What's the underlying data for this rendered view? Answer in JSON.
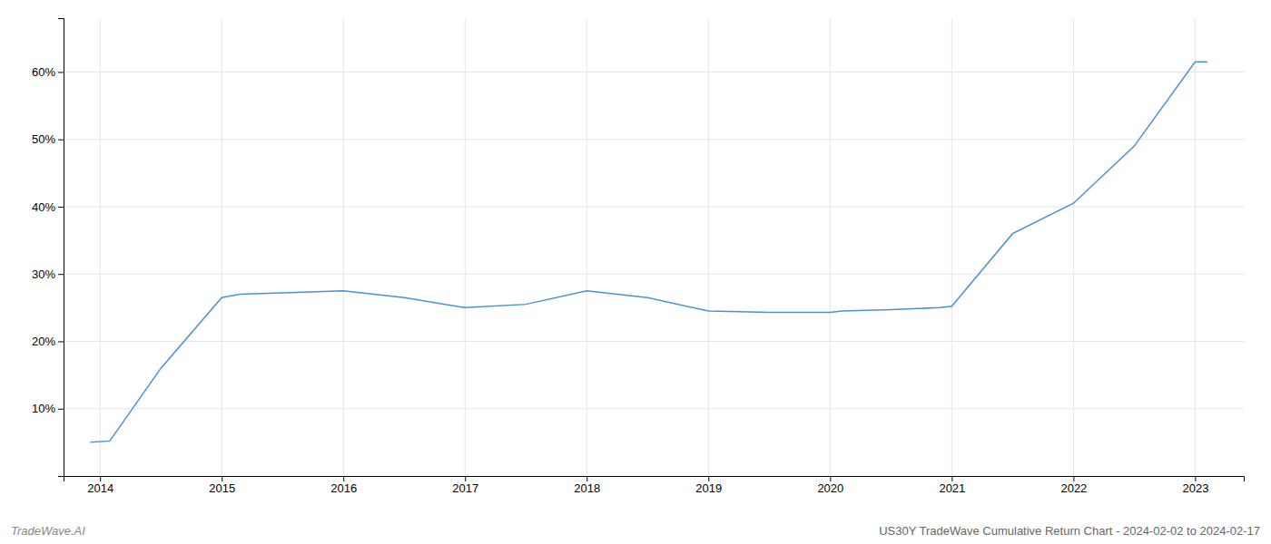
{
  "chart_data": {
    "type": "line",
    "title": "US30Y TradeWave Cumulative Return Chart - 2024-02-02 to 2024-02-17",
    "annotations": [
      "TradeWave.AI"
    ],
    "x": [
      2013.92,
      2014.08,
      2014.5,
      2015.0,
      2015.15,
      2015.5,
      2016.0,
      2016.5,
      2017.0,
      2017.5,
      2018.0,
      2018.5,
      2019.0,
      2019.5,
      2020.0,
      2020.1,
      2020.5,
      2020.9,
      2021.0,
      2021.5,
      2022.0,
      2022.5,
      2023.0,
      2023.1
    ],
    "values": [
      5.0,
      5.2,
      16.0,
      26.5,
      27.0,
      27.2,
      27.5,
      26.5,
      25.0,
      25.5,
      27.5,
      26.5,
      24.5,
      24.3,
      24.3,
      24.5,
      24.7,
      25.0,
      25.2,
      36.0,
      40.5,
      49.0,
      61.5,
      61.5
    ],
    "color": "#4a90d9",
    "xlim": [
      2013.7,
      2023.4
    ],
    "xticks": [
      2014,
      2015,
      2016,
      2017,
      2018,
      2019,
      2020,
      2021,
      2022,
      2023
    ],
    "ylim": [
      0,
      68
    ],
    "yticks": [
      {
        "value": 10,
        "label": "10%"
      },
      {
        "value": 20,
        "label": "20%"
      },
      {
        "value": 30,
        "label": "30%"
      },
      {
        "value": 40,
        "label": "40%"
      },
      {
        "value": 50,
        "label": "50%"
      },
      {
        "value": 60,
        "label": "60%"
      }
    ],
    "grid": true
  }
}
